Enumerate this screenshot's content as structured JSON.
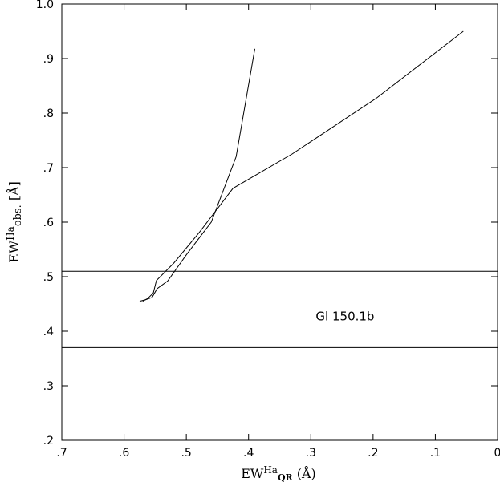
{
  "chart_data": {
    "type": "line",
    "xlabel": "EW^Ha_QR (Å)",
    "xlabel_parts": {
      "base": "EW",
      "sup": "Ha",
      "sub": "QR",
      "unit": " (Å)"
    },
    "ylabel": "EW^Ha_obs. [Å]",
    "ylabel_parts": {
      "base": "EW",
      "sup": "Ha",
      "sub": "obs.",
      "unit": " [Å]"
    },
    "x_reversed": true,
    "xlim": [
      0.7,
      0.0
    ],
    "ylim": [
      0.2,
      1.0
    ],
    "x_ticks": [
      {
        "value": 0.7,
        "label": ".7"
      },
      {
        "value": 0.6,
        "label": ".6"
      },
      {
        "value": 0.5,
        "label": ".5"
      },
      {
        "value": 0.4,
        "label": ".4"
      },
      {
        "value": 0.3,
        "label": ".3"
      },
      {
        "value": 0.2,
        "label": ".2"
      },
      {
        "value": 0.1,
        "label": ".1"
      },
      {
        "value": 0.0,
        "label": "0"
      }
    ],
    "y_ticks": [
      {
        "value": 0.2,
        "label": ".2"
      },
      {
        "value": 0.3,
        "label": ".3"
      },
      {
        "value": 0.4,
        "label": ".4"
      },
      {
        "value": 0.5,
        "label": ".5"
      },
      {
        "value": 0.6,
        "label": ".6"
      },
      {
        "value": 0.7,
        "label": ".7"
      },
      {
        "value": 0.8,
        "label": ".8"
      },
      {
        "value": 0.9,
        "label": ".9"
      },
      {
        "value": 1.0,
        "label": "1.0"
      }
    ],
    "grid": false,
    "series": [
      {
        "x": [
          0.575,
          0.565,
          0.555,
          0.547,
          0.53,
          0.5,
          0.46,
          0.42,
          0.39
        ],
        "y": [
          0.455,
          0.458,
          0.462,
          0.478,
          0.492,
          0.54,
          0.6,
          0.72,
          0.918
        ]
      },
      {
        "x": [
          0.57,
          0.562,
          0.553,
          0.548,
          0.52,
          0.48,
          0.425,
          0.33,
          0.195,
          0.055
        ],
        "y": [
          0.455,
          0.46,
          0.47,
          0.493,
          0.525,
          0.58,
          0.662,
          0.725,
          0.827,
          0.95
        ]
      }
    ],
    "hlines": [
      0.51,
      0.37
    ],
    "annotations": [
      {
        "text": "Gl 150.1b",
        "x": 0.245,
        "y": 0.42
      }
    ]
  }
}
